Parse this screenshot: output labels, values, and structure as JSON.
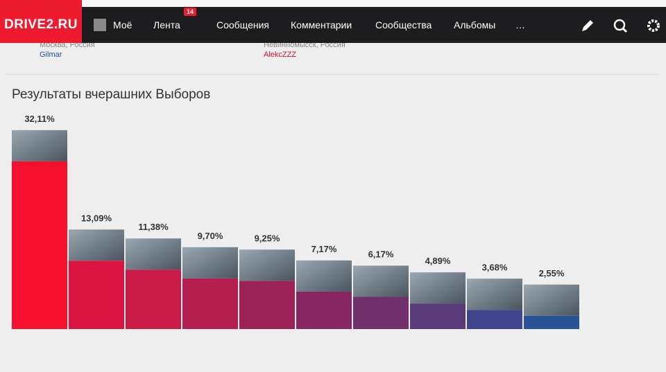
{
  "nav": {
    "logo": "DRIVE2.RU",
    "items": [
      "Моё",
      "Лента",
      "Сообщения",
      "Комментарии",
      "Сообщества",
      "Альбомы",
      "…"
    ],
    "badge": 14
  },
  "posts": [
    {
      "location": "Москва, Россия",
      "author": "Gilmar"
    },
    {
      "location": "Невинномысск, Россия",
      "author": "AlekcZZZ"
    }
  ],
  "chart_data": {
    "type": "bar",
    "title": "Результаты вчерашних Выборов",
    "values": [
      32.11,
      13.09,
      11.38,
      9.7,
      9.25,
      7.17,
      6.17,
      4.89,
      3.68,
      2.55
    ],
    "value_labels": [
      "32,11%",
      "13,09%",
      "11,38%",
      "9,70%",
      "9,25%",
      "7,17%",
      "6,17%",
      "4,89%",
      "3,68%",
      "2,55%"
    ],
    "colors": [
      "#f5102e",
      "#dc1440",
      "#c91a48",
      "#b51f50",
      "#9d2256",
      "#872660",
      "#71306c",
      "#5a3a78",
      "#3e458c",
      "#2a5298"
    ]
  }
}
